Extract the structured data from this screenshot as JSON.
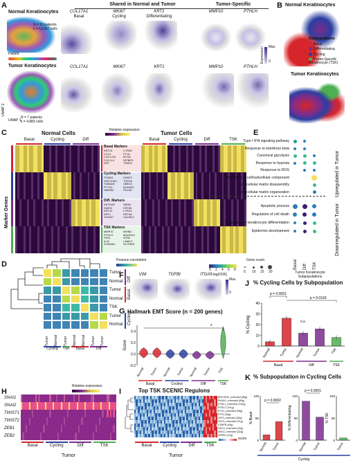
{
  "panel_a": {
    "letter": "A",
    "header_shared": "Shared in Normal and Tumor",
    "header_specific": "Tumor-Specific",
    "normal_title": "Normal Keratinocytes",
    "normal_n": "N = 10 patients",
    "normal_k": "k = 13,937 cells",
    "patient_label": "Patient",
    "tumor_title": "Tumor Keratinocytes",
    "tumor_n": "N = 7 patients",
    "tumor_k": "k = 4,883 cells",
    "umap1": "UMAP 1",
    "umap2": "UMAP 2",
    "genes": [
      {
        "gene": "COL17A1",
        "sub": "Basal"
      },
      {
        "gene": "MKI67",
        "sub": "Cycling"
      },
      {
        "gene": "KRT1",
        "sub": "Differentiating"
      },
      {
        "gene": "MMP10",
        "sub": ""
      },
      {
        "gene": "PTHLH",
        "sub": ""
      }
    ],
    "expr_label": "Expression",
    "expr_max": "Max",
    "expr_min": "0"
  },
  "panel_b": {
    "letter": "B",
    "normal_title": "Normal Keratinocytes",
    "tumor_title": "Tumor Keratinocytes",
    "legend_title": "Subpopulations",
    "legend": [
      {
        "label": "Basal",
        "color": "#d6262b"
      },
      {
        "label": "Differentiating",
        "color": "#7b2d8e"
      },
      {
        "label": "Cycling",
        "color": "#2b3fa0"
      },
      {
        "label": "Tumor-Specific Keratinocyte (TSK)",
        "color": "#4caf50"
      }
    ]
  },
  "panel_c": {
    "letter": "C",
    "normal_title": "Normal Cells",
    "tumor_title": "Tumor Cells",
    "rel_expr": "Relative expression",
    "normal_cols": [
      "Basal",
      "Cycling",
      "Diff"
    ],
    "tumor_cols": [
      "Basal",
      "Cycling",
      "Diff",
      "TSK"
    ],
    "side_label": "Marker Genes",
    "marker_blocks": [
      {
        "title": "Basal Markers",
        "left": "KRT15\nCCL2\nCOL17A1\nCXCL14\nDST",
        "right": "CYR61\nFTH1\nMT2A\nIGFBP5\nTHBS2",
        "color": "#d6262b"
      },
      {
        "title": "Cycling Markers",
        "left": "STMN1\nHIST1H4C\nTUBA1B\nPTTG1\nHMGB2",
        "right": "H2AFZ\nTOP2A\nUBE2C\nNUSAP1\nPCLAF",
        "color": "#2b3fa0"
      },
      {
        "title": "Diff. Markers",
        "left": "KRTDAP\nDMKN\nKRT10\nKRT1\nS100A7",
        "right": "SBSN\nKRT80\nLYPD3\nKRT6A\nCALML5",
        "color": "#7b2d8e"
      },
      {
        "title": "TSK Markers",
        "left": "MMP10\nPTHLH\nFEZ1\nIL24\nKCNMA1",
        "right": "INHBA\nMAGEA4\nNT5E\nLAMC2\nSLITRK6",
        "color": "#4caf50"
      }
    ]
  },
  "panel_d": {
    "letter": "D",
    "pearson": "Pearson correlation",
    "rows": [
      "Tumor",
      "Normal",
      "Tumor",
      "Normal",
      "TSK",
      "Tumor",
      "Normal"
    ],
    "groups": [
      "Diff",
      "Basal",
      "Cycling"
    ],
    "cols": [
      "Tumor",
      "Normal",
      "Tumor",
      "Normal",
      "Normal",
      "Tumor",
      "Tumor"
    ],
    "bottom_groups": [
      "Cycling",
      "TSK",
      "Basal",
      "Diff"
    ]
  },
  "panel_e": {
    "letter": "E",
    "rows": [
      "Type I IFN signaling pathway",
      "Response to interferon-beta",
      "Canonical glycolysis",
      "Response to hypoxia",
      "Response to ROS",
      "Movement of cell/subcellular component",
      "Extracellular matrix disassembly",
      "Extracellular matrix organization",
      "Apoptotic process",
      "Regulation of cell death",
      "Regulation of keratinocyte differentiation",
      "Epidermis development"
    ],
    "cols": [
      "Basal",
      "Diff",
      "TSK"
    ],
    "up_label": "Upregulated in Tumor",
    "down_label": "Downregulated in Tumor",
    "fdr_label": "-log(FDR)",
    "fdr_ticks": [
      "0",
      "2",
      "4",
      "6",
      "8"
    ],
    "gene_count": "Gene count",
    "gene_count_vals": [
      "5",
      "10",
      "15",
      "20"
    ],
    "sub_label": "Tumor Keratinocyte Subpopulations"
  },
  "panel_f": {
    "letter": "F",
    "genes": [
      "VIM",
      "TGFBI",
      "ITGA5"
    ],
    "expr_label": "Expression",
    "expr_max": "Max",
    "expr_min": "0"
  },
  "panel_g": {
    "letter": "G",
    "title": "Hallmark EMT Score (n = 200 genes)",
    "ylabel": "Score",
    "star": "*",
    "xlabels": [
      "Normal",
      "Tumor",
      "Normal",
      "Tumor",
      "Normal",
      "Tumor",
      "TSK"
    ],
    "groups": [
      "Basal",
      "Cycling",
      "Diff",
      "TSK"
    ]
  },
  "panel_h": {
    "letter": "H",
    "genes": [
      "SNAI1",
      "SNAI2",
      "TWIST1",
      "TWIST2",
      "ZEB1",
      "ZEB2"
    ],
    "rel_expr": "Relative expression",
    "groups": [
      "Basal",
      "Cycling",
      "Diff",
      "TSK"
    ],
    "xlabel": "Tumor"
  },
  "panel_i": {
    "letter": "I",
    "title": "Top TSK SCENIC Regulons",
    "regulons": [
      "BHLHE40_extended (86g)",
      "RUNX1_extended (89g)",
      "FOSL1_extended (142g)",
      "FOSL2 (151g)",
      "ETS1_extended (58g)",
      "ETS1 (26g)",
      "ATF3_extended (82g)",
      "SOX4_extended (21g)",
      "CEBPB (49g)",
      "NFIL3_extended (32g)",
      "MXD1_extended (32g)",
      "NFKB1 (27g)"
    ],
    "scale_label": "score",
    "groups": [
      "Basal",
      "Cycling",
      "Diff",
      "TSK"
    ],
    "xlabel": "Tumor"
  },
  "panel_j": {
    "letter": "J",
    "title": "% Cycling Cells by Subpopulation",
    "ylabel": "% Cycling",
    "p1": "p = 0.0001",
    "p2": "p = 0.0169",
    "ns": "n.s.",
    "groups": [
      "Basal",
      "Diff",
      "TSK"
    ],
    "chart_data": {
      "type": "bar",
      "categories": [
        "Normal",
        "Tumor",
        "Normal",
        "Tumor",
        "TSK"
      ],
      "values": [
        4,
        26,
        12,
        16,
        8
      ],
      "ylim": [
        0,
        40
      ],
      "yticks": [
        "0",
        "10",
        "20",
        "30",
        "40"
      ]
    }
  },
  "panel_k": {
    "letter": "K",
    "title": "% Subpopulation in Cycling Cells",
    "ylabels": [
      "% Basal",
      "% Differentiating",
      "% TSK"
    ],
    "p1": "p = 0.0002",
    "p2": "p = 0.0001",
    "xlabel": "Cycling",
    "chart_data": [
      {
        "type": "bar",
        "categories": [
          "Normal",
          "Tumor"
        ],
        "values": [
          12,
          42
        ],
        "ylim": [
          0,
          100
        ],
        "yticks": [
          "0",
          "50",
          "100"
        ]
      },
      {
        "type": "bar",
        "categories": [
          "Normal",
          "Tumor"
        ],
        "values": [
          88,
          52
        ],
        "ylim": [
          0,
          100
        ],
        "yticks": [
          "0",
          "50",
          "100"
        ]
      },
      {
        "type": "bar",
        "categories": [
          "Tumor"
        ],
        "values": [
          5
        ],
        "ylim": [
          0,
          100
        ],
        "yticks": [
          "0",
          "50",
          "100"
        ]
      }
    ]
  }
}
